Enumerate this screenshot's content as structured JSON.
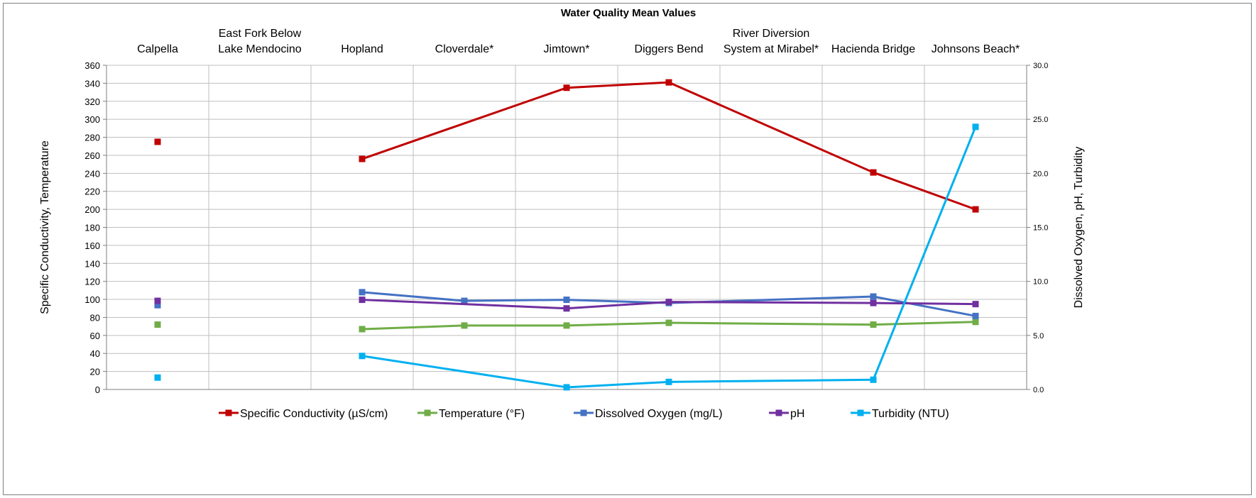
{
  "chart_data": {
    "type": "line",
    "title": "Water Quality Mean Values",
    "categories": [
      [
        "Calpella"
      ],
      [
        "East Fork Below",
        "Lake Mendocino"
      ],
      [
        "Hopland"
      ],
      [
        "Cloverdale*"
      ],
      [
        "Jimtown*"
      ],
      [
        "Diggers Bend"
      ],
      [
        "River Diversion",
        "System at Mirabel*"
      ],
      [
        "Hacienda Bridge"
      ],
      [
        "Johnsons Beach*"
      ]
    ],
    "ylabel": "Specific Conductivity, Temperature",
    "y2label": "Dissolved Oxygen, pH, Turbidity",
    "ylim": [
      0,
      360
    ],
    "y2lim": [
      0,
      30
    ],
    "yticks": [
      "0",
      "20",
      "40",
      "60",
      "80",
      "100",
      "120",
      "140",
      "160",
      "180",
      "200",
      "220",
      "240",
      "260",
      "280",
      "300",
      "320",
      "340",
      "360"
    ],
    "y2ticks": [
      "0.0",
      "5.0",
      "10.0",
      "15.0",
      "20.0",
      "25.0",
      "30.0"
    ],
    "grid": true,
    "legend_position": "bottom",
    "series": [
      {
        "name": "Specific Conductivity (µS/cm)",
        "axis": "left",
        "color": "#c00000",
        "values": [
          275,
          null,
          256,
          null,
          335,
          341,
          null,
          241,
          200
        ]
      },
      {
        "name": "Temperature  (°F)",
        "axis": "left",
        "color": "#70ad47",
        "values": [
          72,
          null,
          67,
          71,
          71,
          74,
          null,
          72,
          75
        ]
      },
      {
        "name": "Dissolved Oxygen (mg/L)",
        "axis": "right",
        "color": "#4472c4",
        "values": [
          7.8,
          null,
          9.0,
          8.2,
          8.3,
          8.0,
          null,
          8.6,
          6.8
        ]
      },
      {
        "name": "pH",
        "axis": "right",
        "color": "#7030a0",
        "values": [
          8.2,
          null,
          8.3,
          null,
          7.5,
          8.1,
          null,
          8.0,
          7.9
        ]
      },
      {
        "name": "Turbidity (NTU)",
        "axis": "right",
        "color": "#00b0f0",
        "values": [
          1.1,
          null,
          3.1,
          null,
          0.2,
          0.7,
          null,
          0.9,
          24.3
        ]
      }
    ]
  }
}
